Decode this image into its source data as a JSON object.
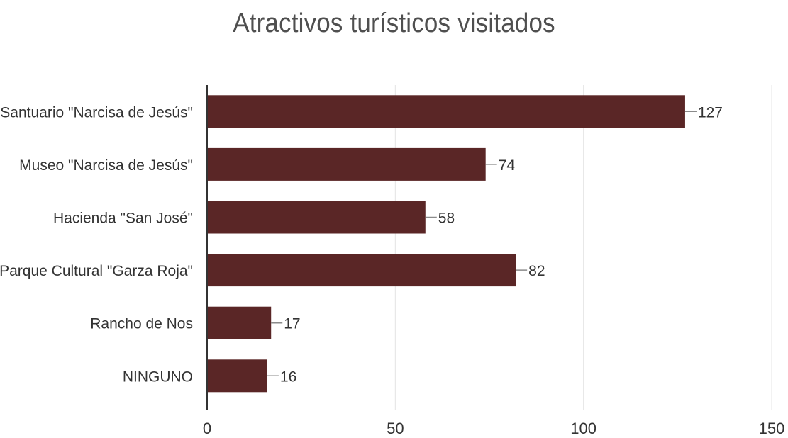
{
  "chart_data": {
    "type": "bar",
    "orientation": "horizontal",
    "title": "Atractivos turísticos visitados",
    "categories": [
      "Santuario \"Narcisa de Jesús\"",
      "Museo \"Narcisa de Jesús\"",
      "Hacienda \"San José\"",
      "Parque Cultural \"Garza Roja\"",
      "Rancho de Nos",
      "NINGUNO"
    ],
    "values": [
      127,
      74,
      58,
      82,
      17,
      16
    ],
    "xlim": [
      0,
      150
    ],
    "xticks": [
      0,
      50,
      100,
      150
    ],
    "grid": true,
    "legend": "none",
    "bar_color": "#5a2626"
  }
}
